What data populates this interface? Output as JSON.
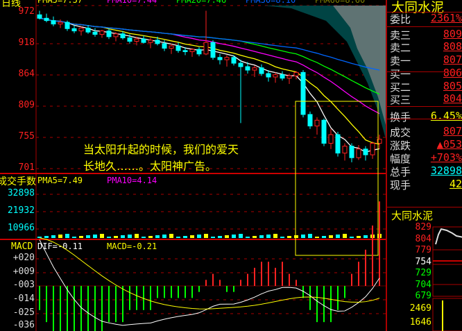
{
  "header": {
    "period_label": "日线",
    "legend": [
      {
        "t": "PMA5=7.57",
        "c": "#ffff00"
      },
      {
        "t": "PMA10=7.44",
        "c": "#ff00ff"
      },
      {
        "t": "PMA20=7.46",
        "c": "#00ff00"
      },
      {
        "t": "PMA30=8.10",
        "c": "#0060ff"
      },
      {
        "t": "PMA60=8.60",
        "c": "#808000"
      }
    ]
  },
  "price_axis": [
    "972",
    "918",
    "864",
    "809",
    "755",
    "701"
  ],
  "volume": {
    "title": "成交手数",
    "pma5": "PMA5=7.49",
    "pma10": "PMA10=4.14",
    "axis": [
      "32898",
      "21932",
      "10966"
    ]
  },
  "macd": {
    "title": "MACD",
    "dif": "DIF=-0.11",
    "macd": "MACD=-0.21",
    "axis": [
      "+020",
      "+009",
      "-003",
      "-014",
      "-025",
      "-036"
    ]
  },
  "overlay": {
    "line1": "当太阳升起的时候，我们的爱天",
    "line2": "长地久……。太阳神广告。"
  },
  "colors": {
    "up": "#ff2020",
    "down": "#00ffff",
    "grid": "#a00000",
    "highlight": "#ffff00"
  },
  "candles": [
    [
      968,
      975,
      960,
      962
    ],
    [
      962,
      970,
      955,
      958
    ],
    [
      958,
      965,
      948,
      952
    ],
    [
      952,
      960,
      945,
      955
    ],
    [
      955,
      958,
      940,
      944
    ],
    [
      944,
      950,
      936,
      940
    ],
    [
      940,
      948,
      932,
      945
    ],
    [
      945,
      950,
      935,
      938
    ],
    [
      938,
      945,
      930,
      934
    ],
    [
      934,
      942,
      928,
      940
    ],
    [
      940,
      944,
      926,
      930
    ],
    [
      930,
      938,
      922,
      935
    ],
    [
      935,
      940,
      925,
      928
    ],
    [
      928,
      934,
      918,
      922
    ],
    [
      922,
      930,
      915,
      926
    ],
    [
      926,
      932,
      918,
      920
    ],
    [
      920,
      928,
      910,
      924
    ],
    [
      924,
      930,
      915,
      918
    ],
    [
      918,
      924,
      905,
      910
    ],
    [
      910,
      918,
      900,
      914
    ],
    [
      914,
      920,
      902,
      906
    ],
    [
      906,
      912,
      898,
      904
    ],
    [
      904,
      910,
      895,
      908
    ],
    [
      908,
      912,
      896,
      900
    ],
    [
      900,
      975,
      898,
      920
    ],
    [
      920,
      924,
      890,
      894
    ],
    [
      894,
      900,
      882,
      890
    ],
    [
      890,
      898,
      878,
      894
    ],
    [
      894,
      898,
      880,
      884
    ],
    [
      884,
      890,
      780,
      878
    ],
    [
      878,
      886,
      866,
      872
    ],
    [
      872,
      880,
      860,
      876
    ],
    [
      876,
      882,
      862,
      866
    ],
    [
      866,
      872,
      852,
      860
    ],
    [
      860,
      868,
      850,
      864
    ],
    [
      864,
      870,
      854,
      858
    ],
    [
      858,
      866,
      848,
      862
    ],
    [
      862,
      870,
      856,
      868
    ],
    [
      868,
      872,
      790,
      795
    ],
    [
      795,
      800,
      770,
      775
    ],
    [
      775,
      790,
      760,
      785
    ],
    [
      785,
      788,
      740,
      745
    ],
    [
      745,
      770,
      735,
      760
    ],
    [
      760,
      765,
      722,
      728
    ],
    [
      728,
      745,
      715,
      740
    ],
    [
      740,
      745,
      712,
      720
    ],
    [
      720,
      742,
      716,
      735
    ],
    [
      735,
      740,
      715,
      725
    ],
    [
      725,
      748,
      718,
      745
    ],
    [
      745,
      760,
      735,
      752
    ]
  ],
  "macd_hist": [
    -0.02,
    -0.03,
    -0.04,
    -0.04,
    -0.05,
    -0.05,
    -0.05,
    -0.04,
    -0.04,
    -0.04,
    -0.03,
    -0.03,
    -0.03,
    -0.02,
    -0.02,
    -0.02,
    -0.02,
    -0.01,
    -0.01,
    -0.01,
    -0.01,
    -0.01,
    -0.01,
    -0.005,
    0.005,
    0.01,
    0.005,
    -0.005,
    -0.005,
    0.005,
    0.01,
    0.015,
    0.02,
    0.02,
    0.015,
    0.02,
    0.01,
    0.005,
    -0.01,
    -0.02,
    -0.03,
    -0.03,
    -0.03,
    -0.02,
    -0.01,
    0.01,
    0.02,
    0.03,
    0.05,
    0.07
  ],
  "right_panel": {
    "title": "大同水泥",
    "rows": [
      {
        "k": "委比",
        "v": "2361%",
        "c": "#ff2020"
      },
      {
        "k": "卖三",
        "v": "809",
        "c": "#ff2020"
      },
      {
        "k": "卖二",
        "v": "808",
        "c": "#ff2020"
      },
      {
        "k": "卖一",
        "v": "807",
        "c": "#ff2020"
      },
      {
        "k": "买一",
        "v": "806",
        "c": "#ff2020"
      },
      {
        "k": "买二",
        "v": "805",
        "c": "#ff2020"
      },
      {
        "k": "买三",
        "v": "804",
        "c": "#ff2020"
      },
      {
        "k": "换手",
        "v": "6.45%",
        "c": "#ffff00"
      },
      {
        "k": "成交",
        "v": "807",
        "c": "#ff2020"
      },
      {
        "k": "涨跌",
        "v": "▲053",
        "c": "#ff2020"
      },
      {
        "k": "幅度",
        "v": "+703%",
        "c": "#ff2020"
      },
      {
        "k": "总手",
        "v": "32898",
        "c": "#00ffff"
      },
      {
        "k": "现手",
        "v": "42",
        "c": "#ffff00"
      }
    ],
    "mini_title": "大同水泥",
    "mini_axis": [
      {
        "v": "829",
        "c": "#ff2020"
      },
      {
        "v": "804",
        "c": "#ff2020"
      },
      {
        "v": "779",
        "c": "#ff2020"
      },
      {
        "v": "754",
        "c": "#ffffff"
      },
      {
        "v": "729",
        "c": "#00ff00"
      },
      {
        "v": "704",
        "c": "#00ff00"
      },
      {
        "v": "679",
        "c": "#00ff00"
      }
    ],
    "mini_vol": [
      "2469",
      "1646"
    ]
  }
}
